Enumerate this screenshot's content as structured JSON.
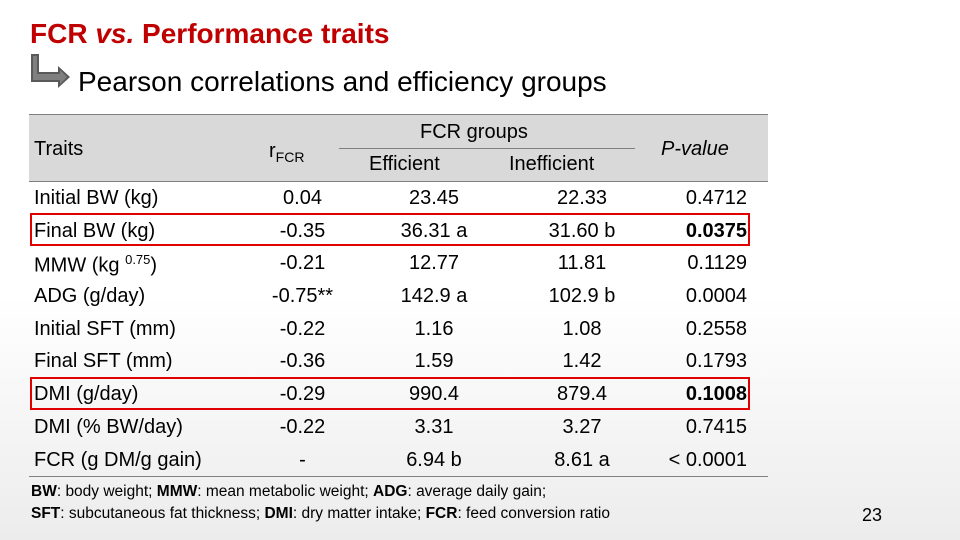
{
  "slide": {
    "title_main": "FCR ",
    "title_vs": "vs.",
    "title_rest": " Performance traits",
    "subtitle": "Pearson correlations and efficiency groups",
    "page_number": "23",
    "accent_color": "#c00000",
    "highlight_color": "#e00000"
  },
  "table": {
    "headers": {
      "traits": "Traits",
      "r": "r",
      "r_sub": "FCR",
      "groups": "FCR groups",
      "efficient": "Efficient",
      "inefficient": "Inefficient",
      "pvalue": "P-value"
    },
    "rows": [
      {
        "trait": "Initial BW (kg)",
        "trait_sup": "",
        "trait_after": "",
        "r": "0.04",
        "eff": "23.45",
        "ineff": "22.33",
        "p": "0.4712"
      },
      {
        "trait": "Final BW (kg)",
        "trait_sup": "",
        "trait_after": "",
        "r": "-0.35",
        "eff": "36.31 a",
        "ineff": "31.60 b",
        "p": "0.0375"
      },
      {
        "trait": "MMW (kg ",
        "trait_sup": "0.75",
        "trait_after": ")",
        "r": "-0.21",
        "eff": "12.77",
        "ineff": "11.81",
        "p": "0.1129"
      },
      {
        "trait": "ADG (g/day)",
        "trait_sup": "",
        "trait_after": "",
        "r": "-0.75**",
        "eff": "142.9 a",
        "ineff": "102.9 b",
        "p": "0.0004"
      },
      {
        "trait": "Initial SFT (mm)",
        "trait_sup": "",
        "trait_after": "",
        "r": "-0.22",
        "eff": "1.16",
        "ineff": "1.08",
        "p": "0.2558"
      },
      {
        "trait": "Final SFT (mm)",
        "trait_sup": "",
        "trait_after": "",
        "r": "-0.36",
        "eff": "1.59",
        "ineff": "1.42",
        "p": "0.1793"
      },
      {
        "trait": "DMI (g/day)",
        "trait_sup": "",
        "trait_after": "",
        "r": "-0.29",
        "eff": "990.4",
        "ineff": "879.4",
        "p": "0.1008"
      },
      {
        "trait": "DMI (% BW/day)",
        "trait_sup": "",
        "trait_after": "",
        "r": "-0.22",
        "eff": "3.31",
        "ineff": "3.27",
        "p": "0.7415"
      },
      {
        "trait": "FCR (g DM/g gain)",
        "trait_sup": "",
        "trait_after": "",
        "r": "-",
        "eff": "6.94 b",
        "ineff": "8.61 a",
        "p": "< 0.0001"
      }
    ]
  },
  "footnote": {
    "line1": [
      {
        "abbr": "BW",
        "def": ": body weight; "
      },
      {
        "abbr": "MMW",
        "def": ": mean metabolic weight; "
      },
      {
        "abbr": "ADG",
        "def": ": average daily gain;"
      }
    ],
    "line2": [
      {
        "abbr": "SFT",
        "def": ": subcutaneous fat thickness; "
      },
      {
        "abbr": "DMI",
        "def": ": dry matter intake; "
      },
      {
        "abbr": "FCR",
        "def": ": feed conversion ratio"
      }
    ]
  }
}
